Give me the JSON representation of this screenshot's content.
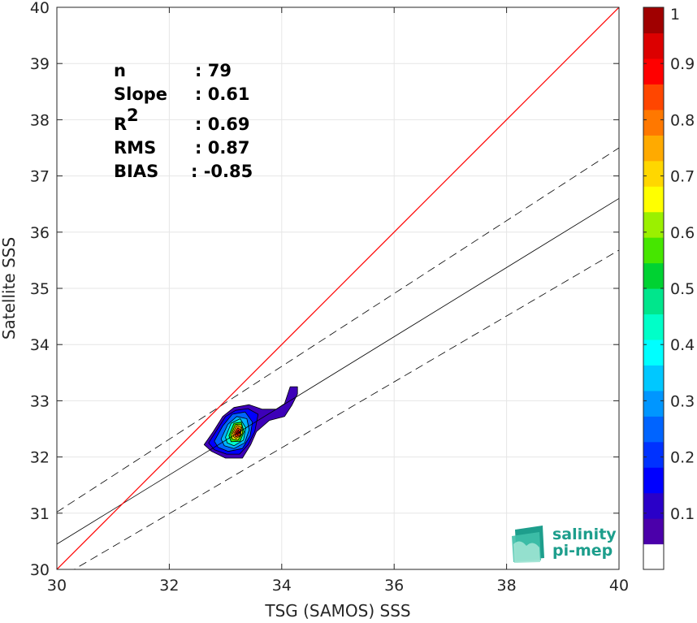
{
  "chart_data": {
    "type": "heatmap",
    "xlabel": "TSG (SAMOS) SSS",
    "ylabel": "Satellite SSS",
    "xlim": [
      30,
      40
    ],
    "ylim": [
      30,
      40
    ],
    "x_ticks": [
      "30",
      "32",
      "34",
      "36",
      "38",
      "40"
    ],
    "y_ticks": [
      "30",
      "31",
      "32",
      "33",
      "34",
      "35",
      "36",
      "37",
      "38",
      "39",
      "40"
    ],
    "grid": true,
    "stats": [
      {
        "label": "n",
        "value": ": 79"
      },
      {
        "label": "Slope",
        "value": ": 0.61"
      },
      {
        "label": "R",
        "sup": "2",
        "value": ": 0.69"
      },
      {
        "label": "RMS",
        "value": ": 0.87"
      },
      {
        "label": "BIAS",
        "value": ": -0.85"
      }
    ],
    "lines": {
      "identity": {
        "color": "#ff0000",
        "x": [
          30,
          40
        ],
        "y": [
          30,
          40
        ]
      },
      "regression": {
        "color": "#000000",
        "x": [
          30,
          40
        ],
        "y": [
          30.45,
          36.6
        ]
      },
      "upper_bound": {
        "style": "dashed",
        "x": [
          30,
          40
        ],
        "y": [
          31.02,
          37.5
        ]
      },
      "lower_bound": {
        "style": "dashed",
        "x": [
          30,
          40
        ],
        "y": [
          29.82,
          35.68
        ]
      }
    },
    "density_contours": [
      {
        "level": 0.05,
        "color": "#3d00b8",
        "points": [
          [
            32.62,
            32.22
          ],
          [
            32.78,
            32.45
          ],
          [
            32.95,
            32.72
          ],
          [
            33.15,
            32.88
          ],
          [
            33.42,
            32.93
          ],
          [
            33.65,
            32.85
          ],
          [
            33.9,
            32.85
          ],
          [
            34.05,
            32.95
          ],
          [
            34.15,
            33.25
          ],
          [
            34.28,
            33.25
          ],
          [
            34.28,
            33.12
          ],
          [
            34.18,
            32.92
          ],
          [
            34.05,
            32.72
          ],
          [
            33.78,
            32.65
          ],
          [
            33.55,
            32.45
          ],
          [
            33.45,
            32.22
          ],
          [
            33.3,
            31.98
          ],
          [
            33.0,
            31.98
          ],
          [
            32.75,
            32.1
          ]
        ]
      },
      {
        "level": 0.15,
        "color": "#0000ff",
        "points": [
          [
            32.7,
            32.25
          ],
          [
            32.86,
            32.5
          ],
          [
            33.0,
            32.72
          ],
          [
            33.18,
            32.83
          ],
          [
            33.4,
            32.86
          ],
          [
            33.58,
            32.76
          ],
          [
            33.52,
            32.45
          ],
          [
            33.4,
            32.22
          ],
          [
            33.25,
            32.05
          ],
          [
            33.02,
            32.05
          ],
          [
            32.8,
            32.13
          ]
        ]
      },
      {
        "level": 0.25,
        "color": "#0064ff",
        "points": [
          [
            32.8,
            32.28
          ],
          [
            32.95,
            32.55
          ],
          [
            33.12,
            32.76
          ],
          [
            33.35,
            32.8
          ],
          [
            33.48,
            32.62
          ],
          [
            33.44,
            32.38
          ],
          [
            33.3,
            32.15
          ],
          [
            33.05,
            32.1
          ],
          [
            32.87,
            32.17
          ]
        ]
      },
      {
        "level": 0.35,
        "color": "#00b4ff",
        "points": [
          [
            32.92,
            32.32
          ],
          [
            33.04,
            32.58
          ],
          [
            33.2,
            32.72
          ],
          [
            33.38,
            32.68
          ],
          [
            33.42,
            32.48
          ],
          [
            33.34,
            32.25
          ],
          [
            33.15,
            32.15
          ],
          [
            32.98,
            32.2
          ]
        ]
      },
      {
        "level": 0.45,
        "color": "#00ffd0",
        "points": [
          [
            33.0,
            32.35
          ],
          [
            33.1,
            32.6
          ],
          [
            33.26,
            32.68
          ],
          [
            33.36,
            32.52
          ],
          [
            33.32,
            32.3
          ],
          [
            33.15,
            32.2
          ],
          [
            33.03,
            32.25
          ]
        ]
      },
      {
        "level": 0.55,
        "color": "#30e000",
        "points": [
          [
            33.06,
            32.38
          ],
          [
            33.15,
            32.6
          ],
          [
            33.28,
            32.62
          ],
          [
            33.33,
            32.45
          ],
          [
            33.26,
            32.28
          ],
          [
            33.1,
            32.27
          ]
        ]
      },
      {
        "level": 0.65,
        "color": "#ffff00",
        "points": [
          [
            33.1,
            32.4
          ],
          [
            33.18,
            32.58
          ],
          [
            33.29,
            32.57
          ],
          [
            33.3,
            32.42
          ],
          [
            33.22,
            32.3
          ],
          [
            33.12,
            32.32
          ]
        ]
      },
      {
        "level": 0.75,
        "color": "#ff9a00",
        "points": [
          [
            33.13,
            32.42
          ],
          [
            33.2,
            32.56
          ],
          [
            33.28,
            32.53
          ],
          [
            33.27,
            32.38
          ],
          [
            33.19,
            32.33
          ],
          [
            33.14,
            32.36
          ]
        ]
      },
      {
        "level": 0.85,
        "color": "#ff2a00",
        "points": [
          [
            33.16,
            32.43
          ],
          [
            33.22,
            32.52
          ],
          [
            33.27,
            32.48
          ],
          [
            33.25,
            32.38
          ],
          [
            33.18,
            32.36
          ]
        ]
      },
      {
        "level": 0.95,
        "color": "#b40000",
        "points": [
          [
            33.19,
            32.43
          ],
          [
            33.23,
            32.48
          ],
          [
            33.25,
            32.43
          ],
          [
            33.21,
            32.39
          ]
        ]
      }
    ],
    "colorbar": {
      "ticks": [
        "1",
        "0.9",
        "0.8",
        "0.7",
        "0.6",
        "0.5",
        "0.4",
        "0.3",
        "0.2",
        "0.1"
      ],
      "tick_values": [
        1,
        0.9,
        0.8,
        0.7,
        0.6,
        0.5,
        0.4,
        0.3,
        0.2,
        0.1
      ],
      "min": 0,
      "max": 1,
      "colors": [
        "#ffffff",
        "#4b00aa",
        "#2a00c8",
        "#0000ff",
        "#0032ff",
        "#0064ff",
        "#0096ff",
        "#00c8ff",
        "#00ffff",
        "#00ffc8",
        "#00e68c",
        "#00d232",
        "#46e600",
        "#9bf000",
        "#ffff00",
        "#ffd700",
        "#ffaa00",
        "#ff7800",
        "#ff4600",
        "#ff0000",
        "#dc0000",
        "#a00000"
      ]
    }
  },
  "logo": {
    "line1": "salinity",
    "line2": "pi-mep"
  }
}
